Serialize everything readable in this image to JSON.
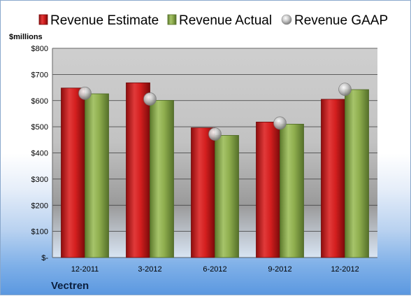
{
  "chart_data": {
    "type": "bar",
    "title": "",
    "xlabel": "",
    "ylabel": "$millions",
    "company": "Vectren",
    "categories": [
      "12-2011",
      "3-2012",
      "6-2012",
      "9-2012",
      "12-2012"
    ],
    "series": [
      {
        "name": "Revenue Estimate",
        "kind": "bar",
        "color": "#d01c1c",
        "values": [
          648,
          668,
          496,
          518,
          605
        ]
      },
      {
        "name": "Revenue Actual",
        "kind": "bar",
        "color": "#8fae4e",
        "values": [
          626,
          601,
          467,
          510,
          642
        ]
      },
      {
        "name": "Revenue GAAP",
        "kind": "marker",
        "color": "#c8c8c8",
        "values": [
          628,
          606,
          472,
          514,
          643
        ]
      }
    ],
    "ylim": [
      0,
      800
    ],
    "yticks": [
      0,
      100,
      200,
      300,
      400,
      500,
      600,
      700,
      800
    ],
    "ytick_labels": [
      "$-",
      "$100",
      "$200",
      "$300",
      "$400",
      "$500",
      "$600",
      "$700",
      "$800"
    ],
    "grid": true,
    "legend_position": "top"
  }
}
